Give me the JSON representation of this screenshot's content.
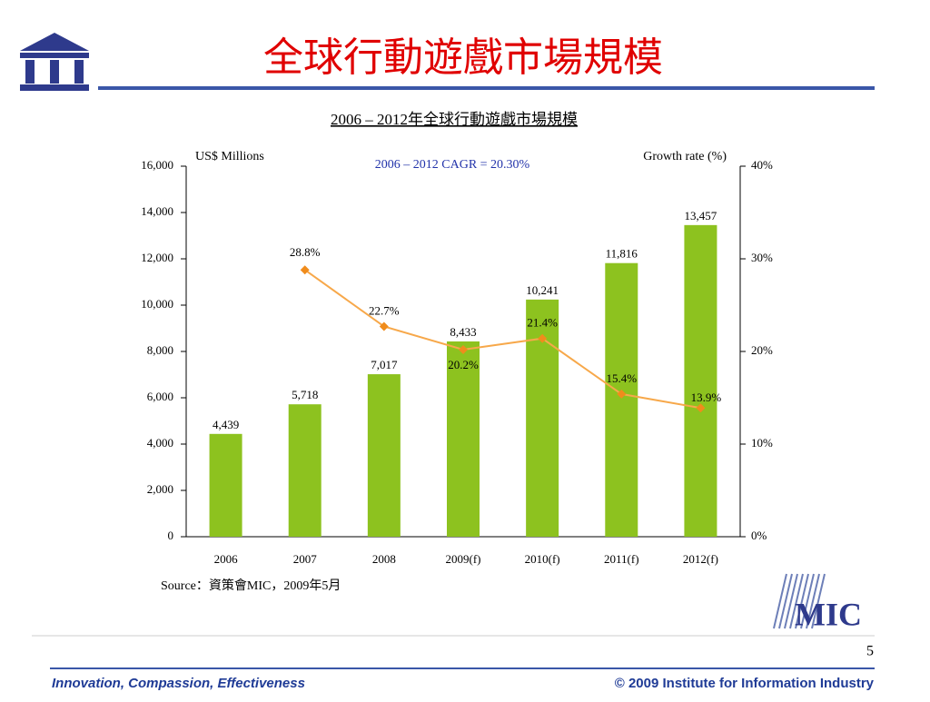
{
  "slide": {
    "title": "全球行動遊戲市場規模",
    "page_number": "5",
    "footer_left": "Innovation, Compassion, Effectiveness",
    "footer_right": "© 2009 Institute for Information Industry",
    "logo_text": "MIC"
  },
  "chart_data": {
    "type": "bar",
    "title": "2006 – 2012年全球行動遊戲市場規模",
    "annotation": "2006 – 2012 CAGR = 20.30%",
    "y_label": "US$ Millions",
    "y2_label": "Growth rate (%)",
    "source": "Source：資策會MIC，2009年5月",
    "categories": [
      "2006",
      "2007",
      "2008",
      "2009(f)",
      "2010(f)",
      "2011(f)",
      "2012(f)"
    ],
    "series": [
      {
        "color": "#8dc21f",
        "values": [
          4439,
          5718,
          7017,
          8433,
          10241,
          11816,
          13457
        ],
        "value_labels": [
          "4,439",
          "5,718",
          "7,017",
          "8,433",
          "10,241",
          "11,816",
          "13,457"
        ]
      },
      {
        "type": "line",
        "axis": "y2",
        "color": "#f7a84a",
        "values": [
          null,
          28.8,
          22.7,
          20.2,
          21.4,
          15.4,
          13.9
        ],
        "value_labels": [
          null,
          "28.8%",
          "22.7%",
          "20.2%",
          "21.4%",
          "15.4%",
          "13.9%"
        ]
      }
    ],
    "ylim": [
      0,
      16000
    ],
    "yticks": [
      0,
      {
        "value": 2000,
        "label": "2,000"
      },
      {
        "value": 4000,
        "label": "4,000"
      },
      {
        "value": 6000,
        "label": "6,000"
      },
      {
        "value": 8000,
        "label": "8,000"
      },
      {
        "value": 10000,
        "label": "10,000"
      },
      {
        "value": 12000,
        "label": "12,000"
      },
      {
        "value": 14000,
        "label": "14,000"
      },
      {
        "value": 16000,
        "label": "16,000"
      }
    ],
    "y2lim": [
      0,
      40
    ],
    "y2ticks": [
      {
        "value": 0,
        "label": "0%"
      },
      {
        "value": 10,
        "label": "10%"
      },
      {
        "value": 20,
        "label": "20%"
      },
      {
        "value": 30,
        "label": "30%"
      },
      {
        "value": 40,
        "label": "40%"
      }
    ]
  }
}
